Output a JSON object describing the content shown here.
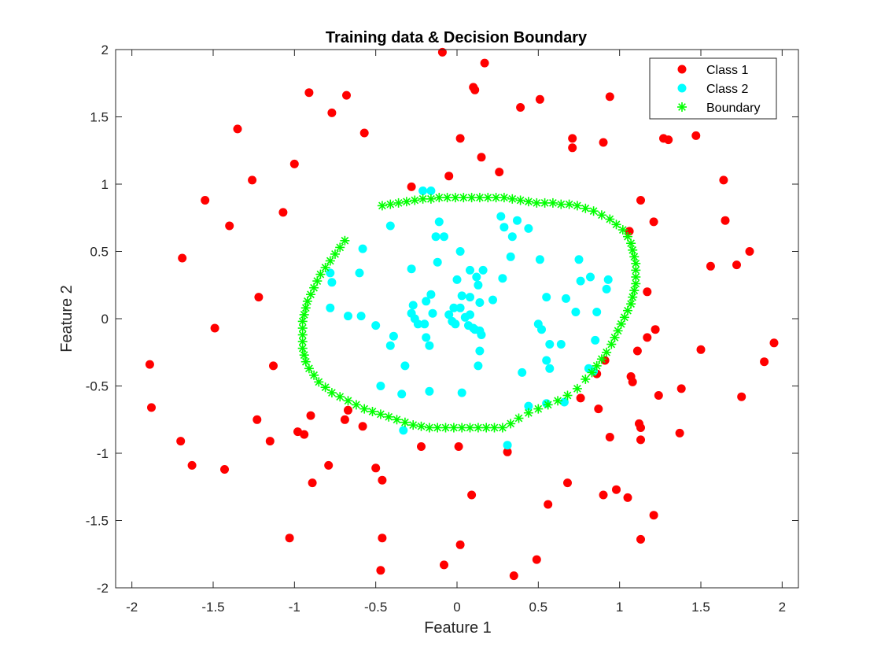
{
  "chart_data": {
    "type": "scatter",
    "title": "Training data & Decision Boundary",
    "xlabel": "Feature 1",
    "ylabel": "Feature 2",
    "xlim": [
      -2.1,
      2.1
    ],
    "ylim": [
      -2,
      2
    ],
    "x_ticks": [
      -2,
      -1.5,
      -1,
      -0.5,
      0,
      0.5,
      1,
      1.5,
      2
    ],
    "y_ticks": [
      -2,
      -1.5,
      -1,
      -0.5,
      0,
      0.5,
      1,
      1.5,
      2
    ],
    "x_tick_labels": [
      "-2",
      "-1.5",
      "-1",
      "-0.5",
      "0",
      "0.5",
      "1",
      "1.5",
      "2"
    ],
    "y_tick_labels": [
      "-2",
      "-1.5",
      "-1",
      "-0.5",
      "0",
      "0.5",
      "1",
      "1.5",
      "2"
    ],
    "grid": false,
    "legend_position": "top-right",
    "series": [
      {
        "name": "Class 1",
        "color": "#ff0000",
        "marker": "circle",
        "points": [
          [
            -0.09,
            1.98
          ],
          [
            0.17,
            1.9
          ],
          [
            0.1,
            1.72
          ],
          [
            0.11,
            1.7
          ],
          [
            -0.91,
            1.68
          ],
          [
            -0.68,
            1.66
          ],
          [
            -0.77,
            1.53
          ],
          [
            0.39,
            1.57
          ],
          [
            0.51,
            1.63
          ],
          [
            0.94,
            1.65
          ],
          [
            -1.35,
            1.41
          ],
          [
            -0.57,
            1.38
          ],
          [
            0.02,
            1.34
          ],
          [
            0.71,
            1.34
          ],
          [
            0.71,
            1.27
          ],
          [
            0.9,
            1.31
          ],
          [
            1.27,
            1.34
          ],
          [
            1.3,
            1.33
          ],
          [
            1.47,
            1.36
          ],
          [
            -1.0,
            1.15
          ],
          [
            0.15,
            1.2
          ],
          [
            0.26,
            1.09
          ],
          [
            -0.05,
            1.06
          ],
          [
            -1.26,
            1.03
          ],
          [
            -0.28,
            0.98
          ],
          [
            1.64,
            1.03
          ],
          [
            -1.55,
            0.88
          ],
          [
            1.13,
            0.88
          ],
          [
            -1.07,
            0.79
          ],
          [
            -1.4,
            0.69
          ],
          [
            1.21,
            0.72
          ],
          [
            1.65,
            0.73
          ],
          [
            1.06,
            0.65
          ],
          [
            1.8,
            0.5
          ],
          [
            -1.69,
            0.45
          ],
          [
            1.56,
            0.39
          ],
          [
            1.72,
            0.4
          ],
          [
            -1.22,
            0.16
          ],
          [
            1.17,
            0.2
          ],
          [
            -1.49,
            -0.07
          ],
          [
            1.22,
            -0.08
          ],
          [
            1.17,
            -0.14
          ],
          [
            1.95,
            -0.18
          ],
          [
            1.11,
            -0.24
          ],
          [
            1.5,
            -0.23
          ],
          [
            -1.89,
            -0.34
          ],
          [
            -1.13,
            -0.35
          ],
          [
            0.91,
            -0.31
          ],
          [
            0.86,
            -0.41
          ],
          [
            1.89,
            -0.32
          ],
          [
            1.07,
            -0.43
          ],
          [
            1.08,
            -0.47
          ],
          [
            1.38,
            -0.52
          ],
          [
            -1.88,
            -0.66
          ],
          [
            0.76,
            -0.59
          ],
          [
            1.24,
            -0.57
          ],
          [
            1.75,
            -0.58
          ],
          [
            -0.67,
            -0.68
          ],
          [
            0.87,
            -0.67
          ],
          [
            -0.69,
            -0.75
          ],
          [
            -1.23,
            -0.75
          ],
          [
            -0.9,
            -0.72
          ],
          [
            -0.58,
            -0.8
          ],
          [
            1.12,
            -0.78
          ],
          [
            1.13,
            -0.81
          ],
          [
            -0.98,
            -0.84
          ],
          [
            -0.94,
            -0.86
          ],
          [
            1.37,
            -0.85
          ],
          [
            -1.7,
            -0.91
          ],
          [
            -1.15,
            -0.91
          ],
          [
            0.94,
            -0.88
          ],
          [
            1.13,
            -0.9
          ],
          [
            -0.22,
            -0.95
          ],
          [
            0.01,
            -0.95
          ],
          [
            0.31,
            -0.99
          ],
          [
            -1.63,
            -1.09
          ],
          [
            -1.43,
            -1.12
          ],
          [
            -0.79,
            -1.09
          ],
          [
            -0.5,
            -1.11
          ],
          [
            -0.46,
            -1.2
          ],
          [
            -0.89,
            -1.22
          ],
          [
            0.68,
            -1.22
          ],
          [
            0.98,
            -1.27
          ],
          [
            0.09,
            -1.31
          ],
          [
            0.9,
            -1.31
          ],
          [
            1.05,
            -1.33
          ],
          [
            0.56,
            -1.38
          ],
          [
            1.21,
            -1.46
          ],
          [
            -1.03,
            -1.63
          ],
          [
            -0.46,
            -1.63
          ],
          [
            1.13,
            -1.64
          ],
          [
            0.02,
            -1.68
          ],
          [
            0.49,
            -1.79
          ],
          [
            -0.08,
            -1.83
          ],
          [
            -0.47,
            -1.87
          ],
          [
            0.35,
            -1.91
          ]
        ]
      },
      {
        "name": "Class 2",
        "color": "#00ffff",
        "marker": "circle",
        "points": [
          [
            -0.21,
            0.95
          ],
          [
            -0.16,
            0.95
          ],
          [
            0.27,
            0.76
          ],
          [
            0.37,
            0.73
          ],
          [
            -0.41,
            0.69
          ],
          [
            0.29,
            0.68
          ],
          [
            0.44,
            0.67
          ],
          [
            -0.11,
            0.72
          ],
          [
            -0.13,
            0.61
          ],
          [
            -0.08,
            0.61
          ],
          [
            0.34,
            0.61
          ],
          [
            -0.58,
            0.52
          ],
          [
            0.02,
            0.5
          ],
          [
            0.33,
            0.46
          ],
          [
            -0.12,
            0.42
          ],
          [
            0.51,
            0.44
          ],
          [
            0.75,
            0.44
          ],
          [
            -0.28,
            0.37
          ],
          [
            0.08,
            0.36
          ],
          [
            0.16,
            0.36
          ],
          [
            -0.6,
            0.34
          ],
          [
            -0.78,
            0.34
          ],
          [
            0.12,
            0.31
          ],
          [
            0.82,
            0.31
          ],
          [
            0.0,
            0.29
          ],
          [
            0.28,
            0.3
          ],
          [
            0.76,
            0.28
          ],
          [
            0.93,
            0.29
          ],
          [
            -0.77,
            0.27
          ],
          [
            0.13,
            0.25
          ],
          [
            0.92,
            0.22
          ],
          [
            -0.16,
            0.18
          ],
          [
            0.03,
            0.17
          ],
          [
            0.08,
            0.16
          ],
          [
            0.22,
            0.14
          ],
          [
            0.55,
            0.16
          ],
          [
            0.67,
            0.15
          ],
          [
            -0.19,
            0.13
          ],
          [
            0.14,
            0.12
          ],
          [
            -0.27,
            0.1
          ],
          [
            -0.78,
            0.08
          ],
          [
            -0.02,
            0.08
          ],
          [
            0.02,
            0.08
          ],
          [
            0.73,
            0.05
          ],
          [
            0.86,
            0.05
          ],
          [
            -0.28,
            0.04
          ],
          [
            -0.15,
            0.04
          ],
          [
            -0.05,
            0.03
          ],
          [
            0.08,
            0.03
          ],
          [
            -0.67,
            0.02
          ],
          [
            -0.59,
            0.02
          ],
          [
            -0.26,
            0.0
          ],
          [
            0.05,
            0.01
          ],
          [
            -0.03,
            -0.02
          ],
          [
            -0.24,
            -0.04
          ],
          [
            -0.2,
            -0.04
          ],
          [
            -0.01,
            -0.04
          ],
          [
            0.07,
            -0.05
          ],
          [
            0.1,
            -0.07
          ],
          [
            0.5,
            -0.04
          ],
          [
            -0.5,
            -0.05
          ],
          [
            0.11,
            -0.08
          ],
          [
            0.14,
            -0.09
          ],
          [
            0.52,
            -0.08
          ],
          [
            0.15,
            -0.12
          ],
          [
            -0.39,
            -0.13
          ],
          [
            0.57,
            -0.19
          ],
          [
            -0.19,
            -0.14
          ],
          [
            0.85,
            -0.16
          ],
          [
            -0.41,
            -0.2
          ],
          [
            -0.17,
            -0.2
          ],
          [
            0.64,
            -0.19
          ],
          [
            0.14,
            -0.24
          ],
          [
            0.55,
            -0.31
          ],
          [
            -0.32,
            -0.35
          ],
          [
            0.13,
            -0.35
          ],
          [
            0.57,
            -0.37
          ],
          [
            0.81,
            -0.37
          ],
          [
            0.4,
            -0.4
          ],
          [
            0.84,
            -0.39
          ],
          [
            -0.47,
            -0.5
          ],
          [
            -0.17,
            -0.54
          ],
          [
            0.03,
            -0.55
          ],
          [
            -0.34,
            -0.56
          ],
          [
            0.66,
            -0.62
          ],
          [
            0.55,
            -0.63
          ],
          [
            0.44,
            -0.65
          ],
          [
            -0.33,
            -0.83
          ],
          [
            0.31,
            -0.94
          ]
        ]
      },
      {
        "name": "Boundary",
        "color": "#00ff00",
        "marker": "asterisk",
        "points": [
          [
            -0.46,
            0.84
          ],
          [
            -0.41,
            0.85
          ],
          [
            -0.36,
            0.86
          ],
          [
            -0.31,
            0.87
          ],
          [
            -0.26,
            0.88
          ],
          [
            -0.21,
            0.89
          ],
          [
            -0.16,
            0.89
          ],
          [
            -0.11,
            0.9
          ],
          [
            -0.06,
            0.9
          ],
          [
            -0.01,
            0.9
          ],
          [
            0.04,
            0.9
          ],
          [
            0.09,
            0.9
          ],
          [
            0.14,
            0.9
          ],
          [
            0.19,
            0.9
          ],
          [
            0.24,
            0.9
          ],
          [
            0.29,
            0.9
          ],
          [
            0.34,
            0.89
          ],
          [
            0.39,
            0.88
          ],
          [
            0.44,
            0.87
          ],
          [
            0.49,
            0.86
          ],
          [
            0.54,
            0.86
          ],
          [
            0.59,
            0.86
          ],
          [
            0.64,
            0.85
          ],
          [
            0.69,
            0.85
          ],
          [
            0.74,
            0.84
          ],
          [
            0.79,
            0.82
          ],
          [
            0.84,
            0.8
          ],
          [
            0.89,
            0.77
          ],
          [
            0.94,
            0.74
          ],
          [
            0.98,
            0.7
          ],
          [
            1.02,
            0.66
          ],
          [
            1.05,
            0.61
          ],
          [
            1.07,
            0.56
          ],
          [
            1.08,
            0.51
          ],
          [
            1.09,
            0.46
          ],
          [
            1.1,
            0.41
          ],
          [
            1.1,
            0.36
          ],
          [
            1.1,
            0.31
          ],
          [
            1.1,
            0.26
          ],
          [
            1.09,
            0.21
          ],
          [
            1.08,
            0.16
          ],
          [
            1.07,
            0.11
          ],
          [
            1.05,
            0.06
          ],
          [
            1.03,
            0.01
          ],
          [
            1.01,
            -0.04
          ],
          [
            0.99,
            -0.09
          ],
          [
            0.97,
            -0.14
          ],
          [
            0.95,
            -0.19
          ],
          [
            0.92,
            -0.25
          ],
          [
            0.89,
            -0.3
          ],
          [
            0.86,
            -0.35
          ],
          [
            0.83,
            -0.4
          ],
          [
            0.79,
            -0.45
          ],
          [
            0.74,
            -0.52
          ],
          [
            0.68,
            -0.57
          ],
          [
            0.62,
            -0.61
          ],
          [
            0.56,
            -0.64
          ],
          [
            0.5,
            -0.67
          ],
          [
            0.44,
            -0.7
          ],
          [
            0.38,
            -0.74
          ],
          [
            0.33,
            -0.78
          ],
          [
            0.28,
            -0.81
          ],
          [
            0.23,
            -0.81
          ],
          [
            0.18,
            -0.81
          ],
          [
            0.13,
            -0.81
          ],
          [
            0.08,
            -0.81
          ],
          [
            0.03,
            -0.81
          ],
          [
            -0.02,
            -0.81
          ],
          [
            -0.07,
            -0.81
          ],
          [
            -0.12,
            -0.81
          ],
          [
            -0.17,
            -0.81
          ],
          [
            -0.22,
            -0.8
          ],
          [
            -0.27,
            -0.79
          ],
          [
            -0.32,
            -0.77
          ],
          [
            -0.37,
            -0.75
          ],
          [
            -0.42,
            -0.73
          ],
          [
            -0.47,
            -0.71
          ],
          [
            -0.52,
            -0.69
          ],
          [
            -0.57,
            -0.67
          ],
          [
            -0.62,
            -0.64
          ],
          [
            -0.67,
            -0.61
          ],
          [
            -0.72,
            -0.58
          ],
          [
            -0.77,
            -0.55
          ],
          [
            -0.81,
            -0.51
          ],
          [
            -0.85,
            -0.47
          ],
          [
            -0.88,
            -0.42
          ],
          [
            -0.91,
            -0.37
          ],
          [
            -0.93,
            -0.32
          ],
          [
            -0.94,
            -0.27
          ],
          [
            -0.95,
            -0.22
          ],
          [
            -0.95,
            -0.17
          ],
          [
            -0.95,
            -0.12
          ],
          [
            -0.95,
            -0.07
          ],
          [
            -0.95,
            -0.02
          ],
          [
            -0.94,
            0.03
          ],
          [
            -0.93,
            0.08
          ],
          [
            -0.92,
            0.13
          ],
          [
            -0.9,
            0.18
          ],
          [
            -0.88,
            0.23
          ],
          [
            -0.86,
            0.28
          ],
          [
            -0.84,
            0.33
          ],
          [
            -0.81,
            0.38
          ],
          [
            -0.78,
            0.43
          ],
          [
            -0.75,
            0.48
          ],
          [
            -0.72,
            0.53
          ],
          [
            -0.69,
            0.58
          ]
        ]
      }
    ]
  }
}
